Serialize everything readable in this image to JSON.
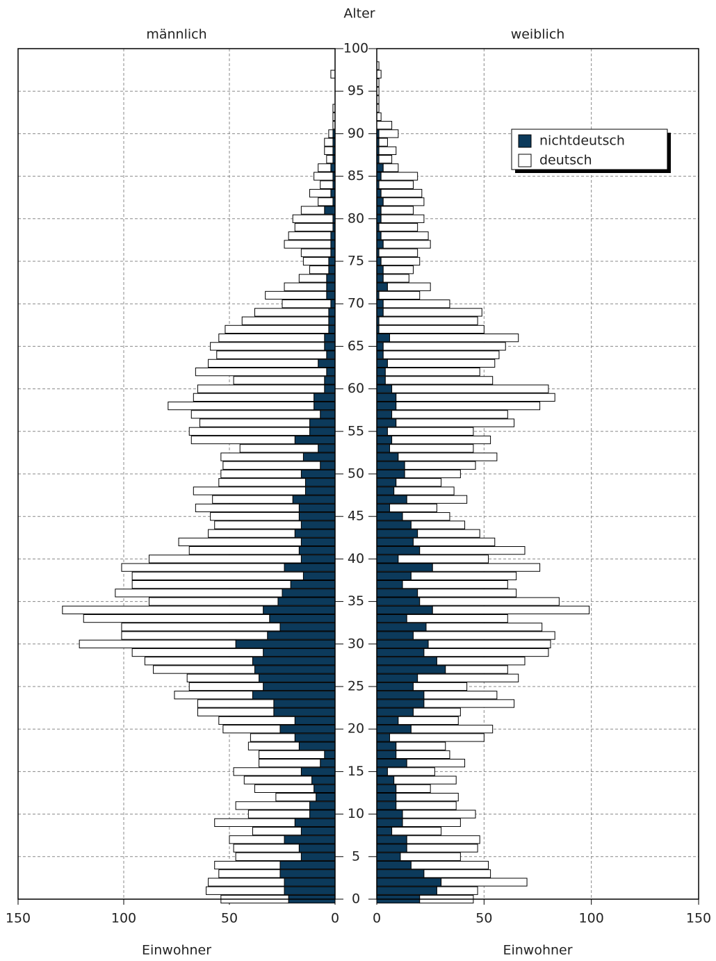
{
  "chart_data": {
    "type": "pyramid",
    "y_label": "Alter",
    "y": [
      0,
      1,
      2,
      3,
      4,
      5,
      6,
      7,
      8,
      9,
      10,
      11,
      12,
      13,
      14,
      15,
      16,
      17,
      18,
      19,
      20,
      21,
      22,
      23,
      24,
      25,
      26,
      27,
      28,
      29,
      30,
      31,
      32,
      33,
      34,
      35,
      36,
      37,
      38,
      39,
      40,
      41,
      42,
      43,
      44,
      45,
      46,
      47,
      48,
      49,
      50,
      51,
      52,
      53,
      54,
      55,
      56,
      57,
      58,
      59,
      60,
      61,
      62,
      63,
      64,
      65,
      66,
      67,
      68,
      69,
      70,
      71,
      72,
      73,
      74,
      75,
      76,
      77,
      78,
      79,
      80,
      81,
      82,
      83,
      84,
      85,
      86,
      87,
      88,
      89,
      90,
      91,
      92,
      93,
      94,
      95,
      96,
      97,
      98,
      99,
      100
    ],
    "ylim": [
      0,
      100
    ],
    "yticks": [
      0,
      5,
      10,
      15,
      20,
      25,
      30,
      35,
      40,
      45,
      50,
      55,
      60,
      65,
      70,
      75,
      80,
      85,
      90,
      95,
      100
    ],
    "grid": true,
    "legend": "upper right",
    "series": [
      {
        "name": "nichtdeutsch",
        "color": "#0c3a5b"
      },
      {
        "name": "deutsch",
        "color": "#ffffff"
      }
    ],
    "panels": [
      {
        "title": "männlich",
        "x_label": "Einwohner",
        "xlim": [
          150,
          0
        ],
        "xticks": [
          150,
          100,
          50,
          0
        ],
        "values": [
          [
            22,
            24,
            24,
            26,
            26,
            16,
            17,
            24,
            16,
            19,
            12,
            12,
            9,
            10,
            11,
            16,
            7,
            5,
            17,
            19,
            26,
            19,
            29,
            29,
            39,
            34,
            36,
            38,
            39,
            34,
            47,
            32,
            26,
            31,
            34,
            27,
            25,
            21,
            15,
            24,
            16,
            17,
            16,
            19,
            16,
            17,
            17,
            20,
            14,
            14,
            16,
            7,
            15,
            8,
            19,
            12,
            12,
            7,
            10,
            10,
            5,
            5,
            4,
            8,
            4,
            5,
            5,
            3,
            3,
            3,
            2,
            4,
            4,
            4,
            3,
            3,
            2,
            2,
            2,
            1,
            1,
            5,
            1,
            2,
            1,
            1,
            2,
            1,
            1,
            1,
            1,
            0,
            0,
            0,
            0,
            0,
            0,
            0,
            0,
            0,
            0
          ],
          [
            32,
            37,
            36,
            29,
            31,
            31,
            31,
            26,
            23,
            38,
            29,
            35,
            19,
            28,
            32,
            32,
            29,
            31,
            24,
            21,
            27,
            36,
            36,
            36,
            37,
            35,
            34,
            48,
            51,
            62,
            74,
            69,
            75,
            88,
            95,
            61,
            79,
            75,
            81,
            77,
            72,
            52,
            58,
            41,
            41,
            42,
            49,
            38,
            53,
            41,
            38,
            46,
            39,
            37,
            49,
            57,
            52,
            61,
            69,
            57,
            60,
            43,
            62,
            52,
            52,
            54,
            50,
            49,
            41,
            35,
            23,
            29,
            20,
            13,
            9,
            12,
            14,
            22,
            20,
            18,
            19,
            11,
            7,
            10,
            6,
            9,
            6,
            3,
            4,
            4,
            2,
            1,
            1,
            1,
            0,
            0,
            0,
            2,
            0,
            0,
            0
          ]
        ]
      },
      {
        "title": "weiblich",
        "x_label": "Einwohner",
        "xlim": [
          0,
          150
        ],
        "xticks": [
          0,
          50,
          100,
          150
        ],
        "values": [
          [
            20,
            28,
            30,
            22,
            16,
            11,
            14,
            14,
            7,
            12,
            12,
            9,
            9,
            9,
            8,
            5,
            14,
            9,
            9,
            6,
            16,
            10,
            17,
            22,
            22,
            17,
            19,
            32,
            28,
            22,
            24,
            17,
            23,
            14,
            26,
            20,
            19,
            12,
            16,
            26,
            10,
            20,
            17,
            19,
            16,
            12,
            6,
            14,
            8,
            9,
            13,
            13,
            10,
            6,
            7,
            5,
            9,
            7,
            9,
            9,
            7,
            4,
            4,
            5,
            3,
            3,
            6,
            1,
            1,
            3,
            3,
            1,
            5,
            3,
            3,
            2,
            1,
            3,
            2,
            1,
            2,
            2,
            3,
            2,
            1,
            2,
            3,
            1,
            1,
            1,
            1,
            0,
            0,
            0,
            0,
            0,
            0,
            0,
            0,
            0,
            0
          ],
          [
            25,
            19,
            40,
            31,
            36,
            28,
            33,
            34,
            23,
            27,
            34,
            28,
            29,
            16,
            29,
            22,
            27,
            25,
            23,
            44,
            38,
            28,
            22,
            42,
            34,
            25,
            47,
            29,
            41,
            58,
            57,
            66,
            54,
            47,
            73,
            65,
            46,
            49,
            49,
            50,
            42,
            49,
            38,
            29,
            25,
            22,
            22,
            28,
            28,
            21,
            26,
            33,
            46,
            39,
            46,
            40,
            55,
            54,
            67,
            74,
            73,
            50,
            44,
            50,
            54,
            57,
            60,
            49,
            46,
            46,
            31,
            19,
            20,
            12,
            14,
            18,
            18,
            22,
            22,
            18,
            20,
            15,
            19,
            19,
            16,
            17,
            7,
            6,
            8,
            4,
            9,
            7,
            2,
            1,
            1,
            1,
            1,
            2,
            1,
            0,
            0
          ]
        ]
      }
    ]
  }
}
